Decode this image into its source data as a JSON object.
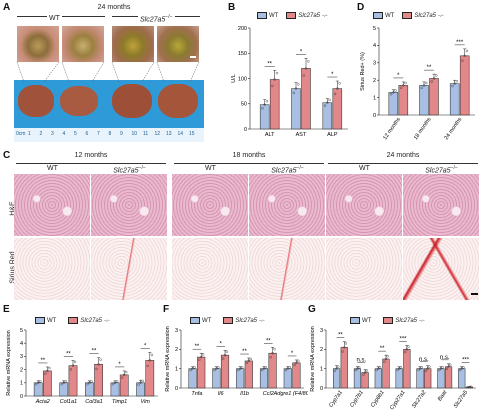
{
  "panels": {
    "A": "A",
    "B": "B",
    "C": "C",
    "D": "D",
    "E": "E",
    "F": "F",
    "G": "G"
  },
  "colors": {
    "wt": "#a8bfe3",
    "ko": "#e2878a",
    "he_bg": "#e7b7c9",
    "sr_bg": "#f6e6e6",
    "liver": "#a4553a",
    "ruler": "#2b8fd6"
  },
  "panelA": {
    "age": "24 months",
    "wt": "WT",
    "ko": "Slc27a5",
    "ko_sup": "−/−",
    "ruler_label": "0cm",
    "ruler_ticks": [
      "1",
      "2",
      "3",
      "4",
      "5",
      "6",
      "7",
      "8",
      "9",
      "10",
      "11",
      "12",
      "13",
      "14",
      "15"
    ]
  },
  "legend": {
    "wt": "WT",
    "ko": "Slc27a5",
    "ko_sup": "−/−"
  },
  "panelC": {
    "ages": [
      "12 months",
      "18 months",
      "24 months"
    ],
    "wt": "WT",
    "ko": "Slc27a5",
    "ko_sup": "−/−",
    "row1": "H&E",
    "row2": "Sirius Red"
  },
  "chart_data": [
    {
      "panel": "B",
      "type": "bar",
      "categories": [
        "ALT",
        "AST",
        "ALP"
      ],
      "ylabel": "U/L",
      "ylim": [
        0,
        200
      ],
      "yticks": [
        0,
        50,
        100,
        150,
        200
      ],
      "series": [
        {
          "name": "WT",
          "values": [
            48,
            80,
            52
          ],
          "errors": [
            10,
            12,
            8
          ]
        },
        {
          "name": "Slc27a5−/−",
          "values": [
            98,
            120,
            80
          ],
          "errors": [
            18,
            20,
            15
          ]
        }
      ],
      "significance": [
        "**",
        "*",
        "*"
      ]
    },
    {
      "panel": "D",
      "type": "bar",
      "categories": [
        "12 months",
        "18 months",
        "24 months"
      ],
      "ylabel": "Sirius Red+ (%)",
      "ylim": [
        0,
        5
      ],
      "yticks": [
        0,
        1,
        2,
        3,
        4,
        5
      ],
      "series": [
        {
          "name": "WT",
          "values": [
            1.3,
            1.7,
            1.8
          ],
          "errors": [
            0.15,
            0.2,
            0.2
          ]
        },
        {
          "name": "Slc27a5−/−",
          "values": [
            1.7,
            2.1,
            3.4
          ],
          "errors": [
            0.2,
            0.25,
            0.4
          ]
        }
      ],
      "significance": [
        "*",
        "**",
        "***"
      ]
    },
    {
      "panel": "E",
      "type": "bar",
      "categories": [
        "Acta2",
        "Col1a1",
        "Col3a1",
        "Timp1",
        "Vim"
      ],
      "ylabel": "Relative mRNA expression",
      "ylim": [
        0,
        5
      ],
      "yticks": [
        0,
        1,
        2,
        3,
        4,
        5
      ],
      "series": [
        {
          "name": "WT",
          "values": [
            1.0,
            1.0,
            1.0,
            1.0,
            1.0
          ],
          "errors": [
            0.15,
            0.15,
            0.15,
            0.15,
            0.2
          ]
        },
        {
          "name": "Slc27a5−/−",
          "values": [
            1.9,
            2.3,
            2.4,
            1.6,
            2.7
          ],
          "errors": [
            0.3,
            0.4,
            0.5,
            0.3,
            0.6
          ]
        }
      ],
      "significance": [
        "**",
        "**",
        "**",
        "*",
        "*"
      ]
    },
    {
      "panel": "F",
      "type": "bar",
      "categories": [
        "Tnfa",
        "Il6",
        "Il1b",
        "Ccl2",
        "Adgre1 (F4/80)"
      ],
      "ylabel": "Relative mRNA expression",
      "ylim": [
        0,
        3
      ],
      "yticks": [
        0,
        1,
        2,
        3
      ],
      "series": [
        {
          "name": "WT",
          "values": [
            1.0,
            1.0,
            1.0,
            1.0,
            1.0
          ],
          "errors": [
            0.1,
            0.1,
            0.1,
            0.1,
            0.1
          ]
        },
        {
          "name": "Slc27a5−/−",
          "values": [
            1.6,
            1.7,
            1.4,
            1.8,
            1.3
          ],
          "errors": [
            0.2,
            0.25,
            0.15,
            0.3,
            0.15
          ]
        }
      ],
      "significance": [
        "**",
        "*",
        "**",
        "**",
        "*"
      ]
    },
    {
      "panel": "G",
      "type": "bar",
      "categories": [
        "Cyp7a1",
        "Cyp7b1",
        "Cyp8b1",
        "Cyp27a1",
        "Slc27a2",
        "Baat",
        "Slc27a5"
      ],
      "ylabel": "Relative mRNA expression",
      "ylim": [
        0,
        3
      ],
      "yticks": [
        0,
        1,
        2,
        3
      ],
      "series": [
        {
          "name": "WT",
          "values": [
            1.0,
            1.0,
            1.0,
            1.0,
            1.0,
            1.0,
            1.0
          ],
          "errors": [
            0.15,
            0.1,
            0.1,
            0.1,
            0.1,
            0.1,
            0.1
          ]
        },
        {
          "name": "Slc27a5−/−",
          "values": [
            2.1,
            0.8,
            1.5,
            2.0,
            1.0,
            1.1,
            0.05
          ],
          "errors": [
            0.3,
            0.15,
            0.2,
            0.2,
            0.15,
            0.15,
            0.02
          ]
        }
      ],
      "significance": [
        "**",
        "n.s.",
        "**",
        "***",
        "n.s.",
        "n.s.",
        "***"
      ]
    }
  ]
}
